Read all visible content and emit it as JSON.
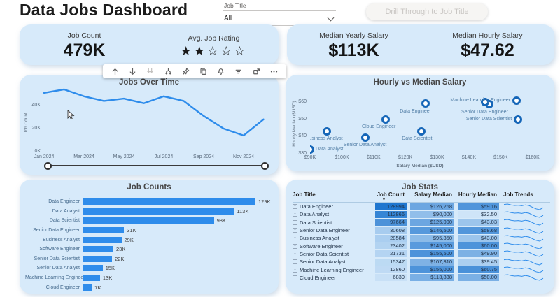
{
  "page": {
    "title": "Data Jobs Dashboard"
  },
  "slicer": {
    "label": "Job Title",
    "value": "All"
  },
  "drill_button": {
    "label": "Drill Through to Job Title"
  },
  "kpis": {
    "job_count": {
      "label": "Job Count",
      "value": "479K"
    },
    "rating": {
      "label": "Avg. Job Rating",
      "stars_filled": 2,
      "stars_total": 5
    },
    "yearly_salary": {
      "label": "Median Yearly Salary",
      "value": "$113K"
    },
    "hourly_salary": {
      "label": "Median Hourly Salary",
      "value": "$47.62"
    }
  },
  "toolbar": {
    "icons": [
      "drill-up",
      "drill-down",
      "go-to-next-level",
      "expand-all-down",
      "pin",
      "copy",
      "alert",
      "filter",
      "focus-mode",
      "more-options"
    ]
  },
  "colors": {
    "accent": "#2e8ceb",
    "card_bg": "#d7eafa",
    "point_ring": "#1566b8",
    "table_bar": "#1f76cf"
  },
  "chart_data": [
    {
      "id": "jobs_over_time",
      "type": "line",
      "title": "Jobs Over Time",
      "ylabel": "Job Count",
      "x": [
        "Jan 2024",
        "Feb 2024",
        "Mar 2024",
        "Apr 2024",
        "May 2024",
        "Jun 2024",
        "Jul 2024",
        "Aug 2024",
        "Sep 2024",
        "Oct 2024",
        "Nov 2024",
        "Dec 2024"
      ],
      "values_k": [
        51,
        54,
        48,
        44,
        46,
        42,
        48,
        44,
        31,
        20,
        14,
        28
      ],
      "x_tick_labels": [
        "Jan 2024",
        "Mar 2024",
        "May 2024",
        "Jul 2024",
        "Sep 2024",
        "Nov 2024"
      ],
      "y_tick_labels": [
        "0K",
        "20K",
        "40K"
      ],
      "ylim_k": [
        0,
        57
      ],
      "hover_index": 1,
      "legend": "off",
      "grid": "off"
    },
    {
      "id": "hourly_vs_median_salary",
      "type": "scatter",
      "title": "Hourly vs Median Salary",
      "xlabel": "Salary Median ($USD)",
      "ylabel": "Hourly Median ($USD)",
      "x_tick_labels": [
        "$90K",
        "$100K",
        "$110K",
        "$120K",
        "$130K",
        "$140K",
        "$150K",
        "$160K"
      ],
      "y_tick_labels": [
        "$30",
        "$40",
        "$50",
        "$60"
      ],
      "xlim": [
        90000,
        160000
      ],
      "ylim": [
        28,
        63
      ],
      "points": [
        {
          "label": "Data Engineer",
          "x": 126268,
          "y": 59.16,
          "label_side": "below",
          "dx": -14
        },
        {
          "label": "Data Analyst",
          "x": 90000,
          "y": 32.5,
          "label_side": "right",
          "dx": 0
        },
        {
          "label": "Data Scientist",
          "x": 125000,
          "y": 43.03,
          "label_side": "below",
          "dx": -6
        },
        {
          "label": "Senior Data Engineer",
          "x": 146500,
          "y": 58.68,
          "label_side": "below",
          "dx": -7
        },
        {
          "label": "Business Analyst",
          "x": 95350,
          "y": 43.0,
          "label_side": "below",
          "dx": -4
        },
        {
          "label": "Software Engineer",
          "x": 145000,
          "y": 60.0,
          "label_side": "none",
          "dx": 0
        },
        {
          "label": "Senior Data Scientist",
          "x": 155500,
          "y": 49.9,
          "label_side": "left",
          "dx": 0
        },
        {
          "label": "Senior Data Analyst",
          "x": 107310,
          "y": 39.45,
          "label_side": "below",
          "dx": 0
        },
        {
          "label": "Machine Learning Engineer",
          "x": 155000,
          "y": 60.75,
          "label_side": "left",
          "dx": 0
        },
        {
          "label": "Cloud Engineer",
          "x": 113838,
          "y": 50.0,
          "label_side": "below",
          "dx": -10
        }
      ]
    },
    {
      "id": "job_counts",
      "type": "bar",
      "title": "Job Counts",
      "orientation": "horizontal",
      "categories": [
        "Data Engineer",
        "Data Analyst",
        "Data Scientist",
        "Senior Data Engineer",
        "Business Analyst",
        "Software Engineer",
        "Senior Data Scientist",
        "Senior Data Analyst",
        "Machine Learning Engineer",
        "Cloud Engineer"
      ],
      "values_k": [
        129,
        113,
        98,
        31,
        29,
        23,
        22,
        15,
        13,
        7
      ],
      "value_labels": [
        "129K",
        "113K",
        "98K",
        "31K",
        "29K",
        "23K",
        "22K",
        "15K",
        "13K",
        "7K"
      ],
      "xmax_k": 129
    },
    {
      "id": "job_stats",
      "type": "table",
      "title": "Job Stats",
      "columns": [
        "Job Title",
        "Job Count",
        "Salary Median",
        "Hourly Median",
        "Job Trends"
      ],
      "sort_column": "Job Count",
      "sort_direction": "desc",
      "rows": [
        {
          "title": "Data Engineer",
          "count": 128994,
          "salary": "$126,268",
          "salary_value": 126268,
          "hourly": "$59.16",
          "hourly_value": 59.16
        },
        {
          "title": "Data Analyst",
          "count": 112866,
          "salary": "$90,000",
          "salary_value": 90000,
          "hourly": "$32.50",
          "hourly_value": 32.5
        },
        {
          "title": "Data Scientist",
          "count": 97664,
          "salary": "$125,000",
          "salary_value": 125000,
          "hourly": "$43.03",
          "hourly_value": 43.03
        },
        {
          "title": "Senior Data Engineer",
          "count": 30608,
          "salary": "$146,500",
          "salary_value": 146500,
          "hourly": "$58.68",
          "hourly_value": 58.68
        },
        {
          "title": "Business Analyst",
          "count": 28584,
          "salary": "$95,350",
          "salary_value": 95350,
          "hourly": "$43.00",
          "hourly_value": 43.0
        },
        {
          "title": "Software Engineer",
          "count": 23402,
          "salary": "$145,000",
          "salary_value": 145000,
          "hourly": "$60.00",
          "hourly_value": 60.0
        },
        {
          "title": "Senior Data Scientist",
          "count": 21731,
          "salary": "$155,500",
          "salary_value": 155500,
          "hourly": "$49.90",
          "hourly_value": 49.9
        },
        {
          "title": "Senior Data Analyst",
          "count": 15347,
          "salary": "$107,310",
          "salary_value": 107310,
          "hourly": "$39.45",
          "hourly_value": 39.45
        },
        {
          "title": "Machine Learning Engineer",
          "count": 12860,
          "salary": "$155,000",
          "salary_value": 155000,
          "hourly": "$60.75",
          "hourly_value": 60.75
        },
        {
          "title": "Cloud Engineer",
          "count": 6839,
          "salary": "$113,838",
          "salary_value": 113838,
          "hourly": "$50.00",
          "hourly_value": 50.0
        }
      ]
    }
  ]
}
